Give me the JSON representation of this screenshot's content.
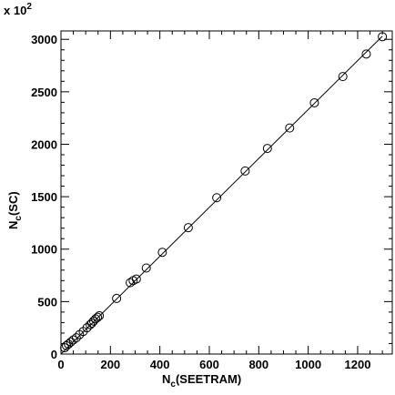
{
  "chart_data": {
    "type": "scatter",
    "title": "",
    "xlabel_main": "N",
    "xlabel_sub": "c",
    "xlabel_rest": "(SEETRAM)",
    "ylabel_main": "N",
    "ylabel_sub": "c",
    "ylabel_rest": "(SC)",
    "y_multiplier_text": "x 10",
    "y_multiplier_exp": "2",
    "xlim": [
      0,
      1340
    ],
    "ylim": [
      0,
      3080
    ],
    "x_ticks": [
      0,
      200,
      400,
      600,
      800,
      1000,
      1200
    ],
    "y_ticks": [
      0,
      500,
      1000,
      1500,
      2000,
      2500,
      3000
    ],
    "grid": false,
    "fit_line": {
      "x": [
        0,
        1300
      ],
      "y": [
        0,
        3030
      ]
    },
    "points": [
      {
        "x": 15,
        "y": 60
      },
      {
        "x": 22,
        "y": 80
      },
      {
        "x": 30,
        "y": 95
      },
      {
        "x": 40,
        "y": 115
      },
      {
        "x": 50,
        "y": 135
      },
      {
        "x": 62,
        "y": 155
      },
      {
        "x": 75,
        "y": 185
      },
      {
        "x": 90,
        "y": 215
      },
      {
        "x": 105,
        "y": 250
      },
      {
        "x": 118,
        "y": 280
      },
      {
        "x": 125,
        "y": 295
      },
      {
        "x": 132,
        "y": 315
      },
      {
        "x": 140,
        "y": 335
      },
      {
        "x": 148,
        "y": 350
      },
      {
        "x": 155,
        "y": 365
      },
      {
        "x": 225,
        "y": 530
      },
      {
        "x": 280,
        "y": 680
      },
      {
        "x": 292,
        "y": 700
      },
      {
        "x": 305,
        "y": 715
      },
      {
        "x": 345,
        "y": 820
      },
      {
        "x": 410,
        "y": 970
      },
      {
        "x": 515,
        "y": 1205
      },
      {
        "x": 630,
        "y": 1490
      },
      {
        "x": 745,
        "y": 1745
      },
      {
        "x": 835,
        "y": 1960
      },
      {
        "x": 925,
        "y": 2155
      },
      {
        "x": 1025,
        "y": 2395
      },
      {
        "x": 1140,
        "y": 2645
      },
      {
        "x": 1235,
        "y": 2860
      },
      {
        "x": 1300,
        "y": 3025
      }
    ]
  }
}
